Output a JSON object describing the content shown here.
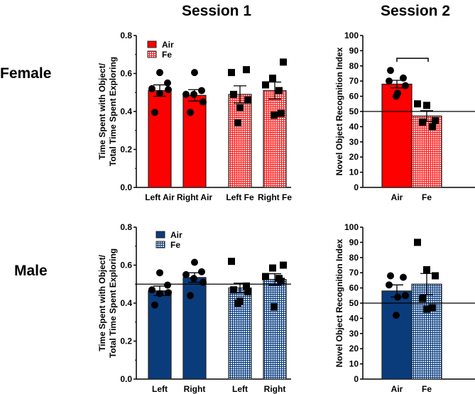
{
  "titles": {
    "session1": "Session 1",
    "session2": "Session 2",
    "female": "Female",
    "male": "Male"
  },
  "colors": {
    "air_female": "#ff0000",
    "fe_female_bg": "#ffd6d6",
    "air_male": "#0a3c7c",
    "fe_male_bg": "#d6e2f2",
    "points": "#000000"
  },
  "chart_data": [
    {
      "id": "female-s1",
      "type": "bar",
      "row": "Female",
      "session": "Session 1",
      "ylabel": [
        "Time Spent with Object/",
        "Total Time Spent Exploring"
      ],
      "ylim": [
        0,
        0.8
      ],
      "yticks": [
        "0.0",
        "0.2",
        "0.4",
        "0.6",
        "0.8"
      ],
      "ytick_values": [
        0,
        0.2,
        0.4,
        0.6,
        0.8
      ],
      "categories": [
        "Left Air",
        "Right Air",
        "Left Fe",
        "Right Fe"
      ],
      "legend": [
        "Air",
        "Fe"
      ],
      "legend_position": "top-left",
      "reference_line": null,
      "bars": [
        {
          "group": "Air",
          "mean": 0.51,
          "sem": 0.03,
          "points": [
            0.605,
            0.55,
            0.52,
            0.515,
            0.495,
            0.395
          ]
        },
        {
          "group": "Air",
          "mean": 0.485,
          "sem": 0.03,
          "points": [
            0.605,
            0.51,
            0.49,
            0.49,
            0.45,
            0.395
          ]
        },
        {
          "group": "Fe",
          "mean": 0.49,
          "sem": 0.045,
          "points": [
            0.605,
            0.62,
            0.49,
            0.46,
            0.42,
            0.34
          ]
        },
        {
          "group": "Fe",
          "mean": 0.51,
          "sem": 0.045,
          "points": [
            0.66,
            0.575,
            0.54,
            0.51,
            0.39,
            0.38
          ]
        }
      ]
    },
    {
      "id": "female-s2",
      "type": "bar",
      "row": "Female",
      "session": "Session 2",
      "ylabel": [
        "Novel Object Recognition Index"
      ],
      "ylim": [
        0,
        100
      ],
      "yticks": [
        "0",
        "10",
        "20",
        "30",
        "40",
        "50",
        "60",
        "70",
        "80",
        "90",
        "100"
      ],
      "ytick_values": [
        0,
        10,
        20,
        30,
        40,
        50,
        60,
        70,
        80,
        90,
        100
      ],
      "categories": [
        "Air",
        "Fe"
      ],
      "reference_line": 50,
      "significance_bracket": 85,
      "bars": [
        {
          "group": "Air",
          "mean": 68,
          "sem": 2.5,
          "points": [
            77,
            72,
            70,
            67,
            62,
            60
          ]
        },
        {
          "group": "Fe",
          "mean": 47,
          "sem": 3.5,
          "points": [
            55,
            54,
            44,
            43,
            40
          ]
        }
      ]
    },
    {
      "id": "male-s1",
      "type": "bar",
      "row": "Male",
      "session": "Session 1",
      "ylabel": [
        "Time Spent with Object/",
        "Total Time Spent Exploring"
      ],
      "ylim": [
        0,
        0.8
      ],
      "yticks": [
        "0.0",
        "0.2",
        "0.4",
        "0.6",
        "0.8"
      ],
      "ytick_values": [
        0,
        0.2,
        0.4,
        0.6,
        0.8
      ],
      "categories": [
        "Left",
        "Right",
        "Left",
        "Right"
      ],
      "legend": [
        "Air",
        "Fe"
      ],
      "legend_position": "top-left",
      "reference_line": 0.5,
      "bars": [
        {
          "group": "Air",
          "mean": 0.465,
          "sem": 0.025,
          "points": [
            0.56,
            0.495,
            0.47,
            0.455,
            0.45,
            0.39
          ]
        },
        {
          "group": "Air",
          "mean": 0.535,
          "sem": 0.025,
          "points": [
            0.615,
            0.565,
            0.55,
            0.53,
            0.51,
            0.44
          ]
        },
        {
          "group": "Fe",
          "mean": 0.48,
          "sem": 0.025,
          "points": [
            0.62,
            0.49,
            0.47,
            0.46,
            0.41,
            0.4
          ]
        },
        {
          "group": "Fe",
          "mean": 0.525,
          "sem": 0.03,
          "points": [
            0.6,
            0.585,
            0.54,
            0.53,
            0.515,
            0.38
          ]
        }
      ]
    },
    {
      "id": "male-s2",
      "type": "bar",
      "row": "Male",
      "session": "Session 2",
      "ylabel": [
        "Novel Object Recognition Index"
      ],
      "ylim": [
        0,
        100
      ],
      "yticks": [
        "0",
        "10",
        "20",
        "30",
        "40",
        "50",
        "60",
        "70",
        "80",
        "90",
        "100"
      ],
      "ytick_values": [
        0,
        10,
        20,
        30,
        40,
        50,
        60,
        70,
        80,
        90,
        100
      ],
      "categories": [
        "Air",
        "Fe"
      ],
      "reference_line": 50,
      "bars": [
        {
          "group": "Air",
          "mean": 58,
          "sem": 4,
          "points": [
            68,
            67,
            62,
            55,
            54,
            42
          ]
        },
        {
          "group": "Fe",
          "mean": 62.5,
          "sem": 7,
          "points": [
            90,
            72,
            68,
            53,
            47,
            46
          ]
        }
      ]
    }
  ]
}
